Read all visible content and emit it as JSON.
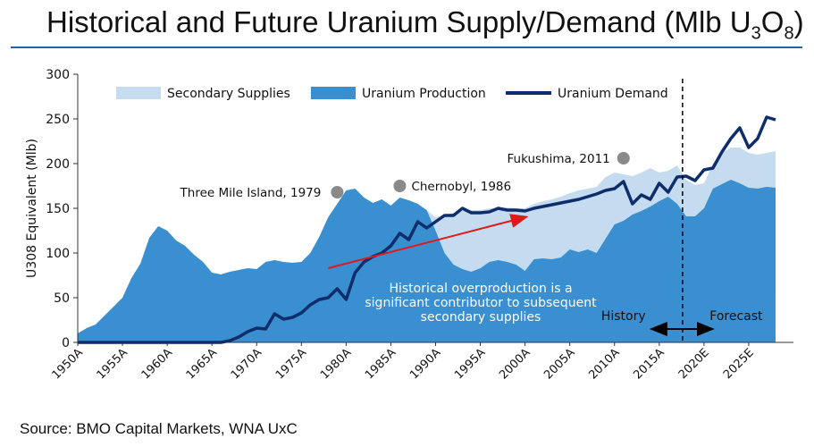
{
  "title": {
    "main": "Historical and Future Uranium Supply/Demand (Mlb U",
    "sub1": "3",
    "mid": "O",
    "sub2": "8",
    "end": ")"
  },
  "source": "Source: BMO Capital Markets, WNA UxC",
  "colors": {
    "secondary": "#c5dcf0",
    "production": "#3a8fd0",
    "demand": "#0d2d6b",
    "arrow": "#e0191b",
    "marker": "#8a8a8a",
    "rule": "#1f63b5"
  },
  "chart_data": {
    "type": "area",
    "ylabel": "U308 Equivalent (Mlb)",
    "ylim": [
      0,
      300
    ],
    "yticks": [
      0,
      50,
      100,
      150,
      200,
      250,
      300
    ],
    "xlim": [
      1950,
      2030
    ],
    "tick_labels": [
      {
        "year": 1950,
        "label": "1950A"
      },
      {
        "year": 1955,
        "label": "1955A"
      },
      {
        "year": 1960,
        "label": "1960A"
      },
      {
        "year": 1965,
        "label": "1965A"
      },
      {
        "year": 1970,
        "label": "1970A"
      },
      {
        "year": 1975,
        "label": "1975A"
      },
      {
        "year": 1980,
        "label": "1980A"
      },
      {
        "year": 1985,
        "label": "1985A"
      },
      {
        "year": 1990,
        "label": "1990A"
      },
      {
        "year": 1995,
        "label": "1995A"
      },
      {
        "year": 2000,
        "label": "2000A"
      },
      {
        "year": 2005,
        "label": "2005A"
      },
      {
        "year": 2010,
        "label": "2010A"
      },
      {
        "year": 2015,
        "label": "2015A"
      },
      {
        "year": 2020,
        "label": "2020E"
      },
      {
        "year": 2025,
        "label": "2025E"
      }
    ],
    "legend": {
      "secondary": "Secondary Supplies",
      "production": "Uranium Production",
      "demand": "Uranium Demand"
    },
    "series": {
      "production": [
        [
          1950,
          10
        ],
        [
          1951,
          16
        ],
        [
          1952,
          20
        ],
        [
          1953,
          30
        ],
        [
          1954,
          40
        ],
        [
          1955,
          50
        ],
        [
          1956,
          72
        ],
        [
          1957,
          88
        ],
        [
          1958,
          117
        ],
        [
          1959,
          130
        ],
        [
          1960,
          125
        ],
        [
          1961,
          114
        ],
        [
          1962,
          108
        ],
        [
          1963,
          98
        ],
        [
          1964,
          90
        ],
        [
          1965,
          78
        ],
        [
          1966,
          76
        ],
        [
          1967,
          79
        ],
        [
          1968,
          81
        ],
        [
          1969,
          83
        ],
        [
          1970,
          82
        ],
        [
          1971,
          90
        ],
        [
          1972,
          92
        ],
        [
          1973,
          90
        ],
        [
          1974,
          89
        ],
        [
          1975,
          90
        ],
        [
          1976,
          100
        ],
        [
          1977,
          118
        ],
        [
          1978,
          140
        ],
        [
          1979,
          155
        ],
        [
          1980,
          170
        ],
        [
          1981,
          172
        ],
        [
          1982,
          162
        ],
        [
          1983,
          156
        ],
        [
          1984,
          160
        ],
        [
          1985,
          153
        ],
        [
          1986,
          162
        ],
        [
          1987,
          159
        ],
        [
          1988,
          155
        ],
        [
          1989,
          148
        ],
        [
          1990,
          125
        ],
        [
          1991,
          100
        ],
        [
          1992,
          87
        ],
        [
          1993,
          82
        ],
        [
          1994,
          79
        ],
        [
          1995,
          83
        ],
        [
          1996,
          90
        ],
        [
          1997,
          92
        ],
        [
          1998,
          90
        ],
        [
          1999,
          87
        ],
        [
          2000,
          80
        ],
        [
          2001,
          93
        ],
        [
          2002,
          94
        ],
        [
          2003,
          93
        ],
        [
          2004,
          95
        ],
        [
          2005,
          104
        ],
        [
          2006,
          101
        ],
        [
          2007,
          104
        ],
        [
          2008,
          100
        ],
        [
          2009,
          116
        ],
        [
          2010,
          132
        ],
        [
          2011,
          136
        ],
        [
          2012,
          143
        ],
        [
          2013,
          147
        ],
        [
          2014,
          152
        ],
        [
          2015,
          158
        ],
        [
          2016,
          163
        ],
        [
          2017,
          155
        ],
        [
          2018,
          141
        ],
        [
          2019,
          141
        ],
        [
          2020,
          150
        ],
        [
          2021,
          172
        ],
        [
          2022,
          177
        ],
        [
          2023,
          182
        ],
        [
          2024,
          178
        ],
        [
          2025,
          173
        ],
        [
          2026,
          172
        ],
        [
          2027,
          174
        ],
        [
          2028,
          173
        ]
      ],
      "total_supply": [
        [
          1950,
          10
        ],
        [
          1951,
          16
        ],
        [
          1952,
          20
        ],
        [
          1953,
          30
        ],
        [
          1954,
          40
        ],
        [
          1955,
          50
        ],
        [
          1956,
          72
        ],
        [
          1957,
          88
        ],
        [
          1958,
          117
        ],
        [
          1959,
          130
        ],
        [
          1960,
          125
        ],
        [
          1961,
          114
        ],
        [
          1962,
          108
        ],
        [
          1963,
          98
        ],
        [
          1964,
          90
        ],
        [
          1965,
          78
        ],
        [
          1966,
          76
        ],
        [
          1967,
          79
        ],
        [
          1968,
          81
        ],
        [
          1969,
          83
        ],
        [
          1970,
          82
        ],
        [
          1971,
          90
        ],
        [
          1972,
          92
        ],
        [
          1973,
          90
        ],
        [
          1974,
          89
        ],
        [
          1975,
          90
        ],
        [
          1976,
          100
        ],
        [
          1977,
          118
        ],
        [
          1978,
          140
        ],
        [
          1979,
          155
        ],
        [
          1980,
          170
        ],
        [
          1981,
          172
        ],
        [
          1982,
          162
        ],
        [
          1983,
          156
        ],
        [
          1984,
          160
        ],
        [
          1985,
          153
        ],
        [
          1986,
          162
        ],
        [
          1987,
          159
        ],
        [
          1988,
          155
        ],
        [
          1989,
          148
        ],
        [
          1990,
          140
        ],
        [
          1991,
          142
        ],
        [
          1992,
          145
        ],
        [
          1993,
          147
        ],
        [
          1994,
          148
        ],
        [
          1995,
          148
        ],
        [
          1996,
          150
        ],
        [
          1997,
          150
        ],
        [
          1998,
          151
        ],
        [
          1999,
          150
        ],
        [
          2000,
          150
        ],
        [
          2001,
          155
        ],
        [
          2002,
          158
        ],
        [
          2003,
          160
        ],
        [
          2004,
          163
        ],
        [
          2005,
          167
        ],
        [
          2006,
          170
        ],
        [
          2007,
          172
        ],
        [
          2008,
          174
        ],
        [
          2009,
          185
        ],
        [
          2010,
          190
        ],
        [
          2011,
          188
        ],
        [
          2012,
          186
        ],
        [
          2013,
          190
        ],
        [
          2014,
          195
        ],
        [
          2015,
          190
        ],
        [
          2016,
          192
        ],
        [
          2017,
          198
        ],
        [
          2018,
          182
        ],
        [
          2019,
          176
        ],
        [
          2020,
          178
        ],
        [
          2021,
          200
        ],
        [
          2022,
          212
        ],
        [
          2023,
          218
        ],
        [
          2024,
          218
        ],
        [
          2025,
          212
        ],
        [
          2026,
          210
        ],
        [
          2027,
          212
        ],
        [
          2028,
          214
        ]
      ],
      "demand": [
        [
          1950,
          0
        ],
        [
          1951,
          0
        ],
        [
          1952,
          0
        ],
        [
          1953,
          0
        ],
        [
          1954,
          0
        ],
        [
          1955,
          0
        ],
        [
          1956,
          0
        ],
        [
          1957,
          0
        ],
        [
          1958,
          0
        ],
        [
          1959,
          0
        ],
        [
          1960,
          0
        ],
        [
          1961,
          0
        ],
        [
          1962,
          0
        ],
        [
          1963,
          0
        ],
        [
          1964,
          0
        ],
        [
          1965,
          0
        ],
        [
          1966,
          0
        ],
        [
          1967,
          2
        ],
        [
          1968,
          6
        ],
        [
          1969,
          12
        ],
        [
          1970,
          16
        ],
        [
          1971,
          15
        ],
        [
          1972,
          32
        ],
        [
          1973,
          26
        ],
        [
          1974,
          28
        ],
        [
          1975,
          33
        ],
        [
          1976,
          42
        ],
        [
          1977,
          48
        ],
        [
          1978,
          50
        ],
        [
          1979,
          60
        ],
        [
          1980,
          48
        ],
        [
          1981,
          78
        ],
        [
          1982,
          90
        ],
        [
          1983,
          96
        ],
        [
          1984,
          100
        ],
        [
          1985,
          108
        ],
        [
          1986,
          122
        ],
        [
          1987,
          115
        ],
        [
          1988,
          135
        ],
        [
          1989,
          128
        ],
        [
          1990,
          135
        ],
        [
          1991,
          142
        ],
        [
          1992,
          142
        ],
        [
          1993,
          150
        ],
        [
          1994,
          145
        ],
        [
          1995,
          145
        ],
        [
          1996,
          146
        ],
        [
          1997,
          150
        ],
        [
          1998,
          148
        ],
        [
          1999,
          148
        ],
        [
          2000,
          147
        ],
        [
          2001,
          150
        ],
        [
          2002,
          152
        ],
        [
          2003,
          154
        ],
        [
          2004,
          156
        ],
        [
          2005,
          158
        ],
        [
          2006,
          160
        ],
        [
          2007,
          163
        ],
        [
          2008,
          166
        ],
        [
          2009,
          170
        ],
        [
          2010,
          172
        ],
        [
          2011,
          180
        ],
        [
          2012,
          155
        ],
        [
          2013,
          165
        ],
        [
          2014,
          160
        ],
        [
          2015,
          178
        ],
        [
          2016,
          168
        ],
        [
          2017,
          185
        ],
        [
          2018,
          186
        ],
        [
          2019,
          181
        ],
        [
          2020,
          193
        ],
        [
          2021,
          195
        ],
        [
          2022,
          213
        ],
        [
          2023,
          228
        ],
        [
          2024,
          240
        ],
        [
          2025,
          218
        ],
        [
          2026,
          228
        ],
        [
          2027,
          252
        ],
        [
          2028,
          249
        ]
      ]
    },
    "annotations": [
      {
        "text": "Three Mile Island, 1979",
        "year": 1979,
        "value": 168
      },
      {
        "text": "Chernobyl, 1986",
        "year": 1986,
        "value": 175
      },
      {
        "text": "Fukushima, 2011",
        "year": 2011,
        "value": 206
      }
    ],
    "trend_arrow": {
      "from": [
        1978,
        83
      ],
      "to": [
        2000,
        140
      ]
    },
    "note_lines": [
      "Historical overproduction is a",
      "significant contributor to subsequent",
      "secondary supplies"
    ],
    "divider_year": 2017.6,
    "history_label": "History",
    "forecast_label": "Forecast",
    "history_arrow": {
      "from": 2014.3,
      "to": 2020.8,
      "value": 15
    }
  }
}
